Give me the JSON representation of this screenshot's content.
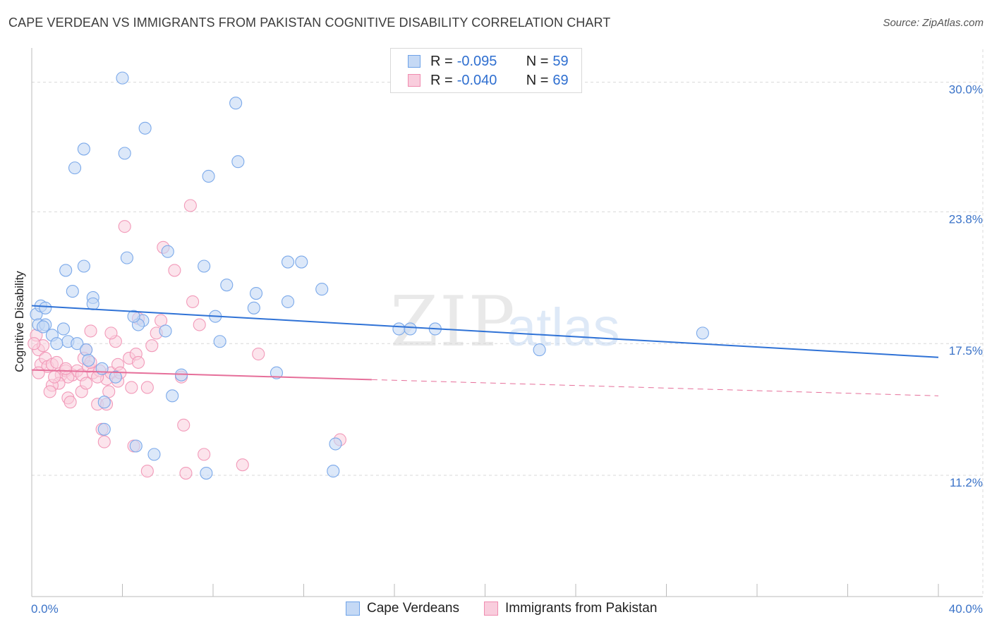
{
  "header": {
    "title": "CAPE VERDEAN VS IMMIGRANTS FROM PAKISTAN COGNITIVE DISABILITY CORRELATION CHART",
    "source": "Source: ZipAtlas.com"
  },
  "watermark": {
    "zip": "ZIP",
    "atlas": "atlas"
  },
  "legend": {
    "r_label": "R =",
    "n_label": "N =",
    "rows": [
      {
        "r": "-0.095",
        "n": "59",
        "color": "#6fa3e8",
        "fill": "#c5d9f5"
      },
      {
        "r": "-0.040",
        "n": "69",
        "color": "#f08cb0",
        "fill": "#f9cddd"
      }
    ]
  },
  "colors": {
    "blue": "#2f72d6",
    "pink": "#e66f9a",
    "blue_point": "#7ba9ea",
    "pink_point": "#f29ab9",
    "tick_label": "#3b73c8",
    "grid": "#d9d9d9"
  },
  "chart_data": {
    "type": "scatter",
    "title": "CAPE VERDEAN VS IMMIGRANTS FROM PAKISTAN COGNITIVE DISABILITY CORRELATION CHART",
    "xlabel": "",
    "ylabel": "Cognitive Disability",
    "xlim": [
      0,
      40
    ],
    "ylim": [
      5.4,
      31.3
    ],
    "x_tick_labels": [
      "0.0%",
      "40.0%"
    ],
    "y_ticks": [
      30.0,
      23.8,
      17.5,
      11.2
    ],
    "y_tick_labels": [
      "30.0%",
      "23.8%",
      "17.5%",
      "11.2%"
    ],
    "grid": true,
    "legend_position": "top-center",
    "series": [
      {
        "name": "Cape Verdeans",
        "color": "#7ba9ea",
        "trend": {
          "x": [
            0,
            40
          ],
          "y": [
            19.31,
            16.84
          ],
          "dashed_from": null
        },
        "points": [
          [
            0.2,
            18.9
          ],
          [
            0.4,
            19.3
          ],
          [
            0.6,
            19.2
          ],
          [
            0.3,
            18.4
          ],
          [
            0.6,
            18.4
          ],
          [
            1.4,
            18.2
          ],
          [
            0.9,
            17.9
          ],
          [
            1.6,
            17.6
          ],
          [
            1.1,
            17.5
          ],
          [
            2.0,
            17.5
          ],
          [
            2.4,
            17.2
          ],
          [
            2.5,
            16.7
          ],
          [
            3.1,
            16.3
          ],
          [
            3.7,
            15.9
          ],
          [
            4.9,
            18.6
          ],
          [
            4.7,
            18.4
          ],
          [
            5.9,
            18.1
          ],
          [
            4.5,
            18.8
          ],
          [
            2.7,
            19.7
          ],
          [
            2.7,
            19.4
          ],
          [
            1.8,
            20.0
          ],
          [
            1.5,
            21.0
          ],
          [
            2.3,
            21.2
          ],
          [
            4.2,
            21.6
          ],
          [
            6.0,
            21.9
          ],
          [
            7.6,
            21.2
          ],
          [
            8.6,
            20.3
          ],
          [
            9.9,
            19.9
          ],
          [
            9.8,
            19.2
          ],
          [
            11.3,
            19.5
          ],
          [
            11.3,
            21.4
          ],
          [
            11.9,
            21.4
          ],
          [
            12.8,
            20.1
          ],
          [
            8.1,
            18.8
          ],
          [
            8.3,
            17.6
          ],
          [
            16.2,
            18.2
          ],
          [
            17.8,
            18.2
          ],
          [
            16.7,
            18.2
          ],
          [
            29.6,
            18.0
          ],
          [
            22.4,
            17.2
          ],
          [
            6.6,
            16.0
          ],
          [
            10.8,
            16.1
          ],
          [
            4.1,
            26.6
          ],
          [
            5.0,
            27.8
          ],
          [
            2.3,
            26.8
          ],
          [
            1.9,
            25.9
          ],
          [
            7.8,
            25.5
          ],
          [
            9.0,
            29.0
          ],
          [
            4.0,
            30.2
          ],
          [
            9.1,
            26.2
          ],
          [
            3.2,
            14.7
          ],
          [
            3.2,
            13.4
          ],
          [
            6.2,
            15.0
          ],
          [
            4.6,
            12.6
          ],
          [
            5.4,
            12.2
          ],
          [
            13.4,
            12.7
          ],
          [
            7.7,
            11.3
          ],
          [
            13.3,
            11.4
          ],
          [
            0.5,
            18.3
          ]
        ]
      },
      {
        "name": "Immigrants from Pakistan",
        "color": "#f29ab9",
        "trend": {
          "x": [
            0,
            40
          ],
          "y": [
            16.24,
            15.0
          ],
          "dashed_from": 15.0
        },
        "points": [
          [
            0.2,
            17.9
          ],
          [
            0.3,
            17.2
          ],
          [
            0.5,
            17.4
          ],
          [
            0.4,
            16.5
          ],
          [
            0.6,
            16.8
          ],
          [
            0.7,
            16.4
          ],
          [
            0.9,
            16.5
          ],
          [
            1.1,
            16.6
          ],
          [
            1.3,
            16.0
          ],
          [
            1.5,
            16.2
          ],
          [
            1.8,
            16.0
          ],
          [
            2.0,
            16.2
          ],
          [
            2.2,
            16.0
          ],
          [
            2.5,
            16.4
          ],
          [
            2.7,
            16.1
          ],
          [
            3.0,
            16.2
          ],
          [
            3.3,
            15.8
          ],
          [
            3.5,
            16.1
          ],
          [
            3.8,
            16.5
          ],
          [
            4.3,
            16.8
          ],
          [
            4.6,
            17.0
          ],
          [
            5.3,
            17.4
          ],
          [
            5.5,
            18.0
          ],
          [
            5.7,
            18.6
          ],
          [
            4.7,
            18.7
          ],
          [
            3.7,
            17.6
          ],
          [
            3.5,
            18.0
          ],
          [
            2.6,
            18.1
          ],
          [
            2.4,
            17.2
          ],
          [
            2.3,
            16.8
          ],
          [
            1.6,
            15.9
          ],
          [
            1.2,
            15.6
          ],
          [
            0.9,
            15.5
          ],
          [
            0.8,
            15.2
          ],
          [
            1.6,
            14.9
          ],
          [
            2.2,
            15.2
          ],
          [
            2.4,
            15.6
          ],
          [
            3.4,
            15.2
          ],
          [
            4.4,
            15.4
          ],
          [
            1.7,
            14.7
          ],
          [
            2.9,
            14.6
          ],
          [
            3.3,
            14.6
          ],
          [
            7.4,
            18.4
          ],
          [
            7.1,
            19.5
          ],
          [
            6.3,
            21.0
          ],
          [
            5.8,
            22.1
          ],
          [
            4.1,
            23.1
          ],
          [
            7.0,
            24.1
          ],
          [
            10.0,
            17.0
          ],
          [
            6.6,
            15.9
          ],
          [
            6.7,
            13.6
          ],
          [
            5.1,
            15.4
          ],
          [
            4.5,
            12.6
          ],
          [
            3.1,
            13.4
          ],
          [
            3.2,
            12.8
          ],
          [
            5.1,
            11.4
          ],
          [
            6.8,
            11.3
          ],
          [
            7.6,
            12.2
          ],
          [
            9.3,
            11.7
          ],
          [
            13.6,
            12.9
          ],
          [
            4.7,
            16.6
          ],
          [
            3.8,
            15.7
          ],
          [
            2.9,
            15.9
          ],
          [
            1.5,
            16.3
          ],
          [
            0.3,
            16.1
          ],
          [
            1.0,
            15.9
          ],
          [
            0.1,
            17.5
          ],
          [
            2.6,
            16.6
          ],
          [
            3.9,
            16.1
          ]
        ]
      }
    ]
  },
  "bottom_legend": [
    "Cape Verdeans",
    "Immigrants from Pakistan"
  ]
}
